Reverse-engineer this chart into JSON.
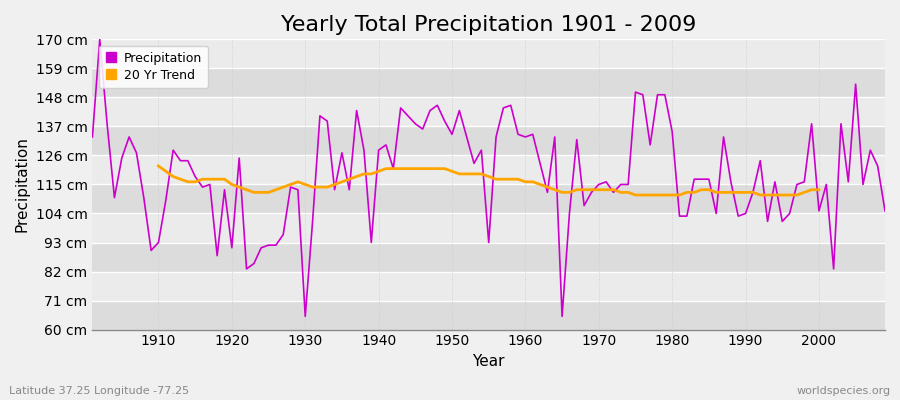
{
  "title": "Yearly Total Precipitation 1901 - 2009",
  "xlabel": "Year",
  "ylabel": "Precipitation",
  "lat_lon_label": "Latitude 37.25 Longitude -77.25",
  "source_label": "worldspecies.org",
  "years": [
    1901,
    1902,
    1903,
    1904,
    1905,
    1906,
    1907,
    1908,
    1909,
    1910,
    1911,
    1912,
    1913,
    1914,
    1915,
    1916,
    1917,
    1918,
    1919,
    1920,
    1921,
    1922,
    1923,
    1924,
    1925,
    1926,
    1927,
    1928,
    1929,
    1930,
    1931,
    1932,
    1933,
    1934,
    1935,
    1936,
    1937,
    1938,
    1939,
    1940,
    1941,
    1942,
    1943,
    1944,
    1945,
    1946,
    1947,
    1948,
    1949,
    1950,
    1951,
    1952,
    1953,
    1954,
    1955,
    1956,
    1957,
    1958,
    1959,
    1960,
    1961,
    1962,
    1963,
    1964,
    1965,
    1966,
    1967,
    1968,
    1969,
    1970,
    1971,
    1972,
    1973,
    1974,
    1975,
    1976,
    1977,
    1978,
    1979,
    1980,
    1981,
    1982,
    1983,
    1984,
    1985,
    1986,
    1987,
    1988,
    1989,
    1990,
    1991,
    1992,
    1993,
    1994,
    1995,
    1996,
    1997,
    1998,
    1999,
    2000,
    2001,
    2002,
    2003,
    2004,
    2005,
    2006,
    2007,
    2008,
    2009
  ],
  "precipitation": [
    133,
    170,
    138,
    110,
    125,
    133,
    127,
    110,
    90,
    93,
    109,
    128,
    124,
    124,
    118,
    114,
    115,
    88,
    113,
    91,
    125,
    83,
    85,
    91,
    92,
    92,
    96,
    114,
    113,
    65,
    101,
    141,
    139,
    113,
    127,
    113,
    143,
    128,
    93,
    128,
    130,
    121,
    144,
    141,
    138,
    136,
    143,
    145,
    139,
    134,
    143,
    133,
    123,
    128,
    93,
    133,
    144,
    145,
    134,
    133,
    134,
    123,
    112,
    133,
    65,
    104,
    132,
    107,
    112,
    115,
    116,
    112,
    115,
    115,
    150,
    149,
    130,
    149,
    149,
    135,
    103,
    103,
    117,
    117,
    117,
    104,
    133,
    116,
    103,
    104,
    112,
    124,
    101,
    116,
    101,
    104,
    115,
    116,
    138,
    105,
    115,
    83,
    138,
    116,
    153,
    115,
    128,
    122,
    105
  ],
  "trend_years": [
    1910,
    1911,
    1912,
    1913,
    1914,
    1915,
    1916,
    1917,
    1918,
    1919,
    1920,
    1921,
    1922,
    1923,
    1924,
    1925,
    1926,
    1927,
    1928,
    1929,
    1930,
    1931,
    1932,
    1933,
    1934,
    1935,
    1936,
    1937,
    1938,
    1939,
    1940,
    1941,
    1942,
    1943,
    1944,
    1945,
    1946,
    1947,
    1948,
    1949,
    1950,
    1951,
    1952,
    1953,
    1954,
    1955,
    1956,
    1957,
    1958,
    1959,
    1960,
    1961,
    1962,
    1963,
    1964,
    1965,
    1966,
    1967,
    1968,
    1969,
    1970,
    1971,
    1972,
    1973,
    1974,
    1975,
    1976,
    1977,
    1978,
    1979,
    1980,
    1981,
    1982,
    1983,
    1984,
    1985,
    1986,
    1987,
    1988,
    1989,
    1990,
    1991,
    1992,
    1993,
    1994,
    1995,
    1996,
    1997,
    1998,
    1999,
    2000
  ],
  "trend": [
    122,
    120,
    118,
    117,
    116,
    116,
    117,
    117,
    117,
    117,
    115,
    114,
    113,
    112,
    112,
    112,
    113,
    114,
    115,
    116,
    115,
    114,
    114,
    114,
    115,
    116,
    117,
    118,
    119,
    119,
    120,
    121,
    121,
    121,
    121,
    121,
    121,
    121,
    121,
    121,
    120,
    119,
    119,
    119,
    119,
    118,
    117,
    117,
    117,
    117,
    116,
    116,
    115,
    114,
    113,
    112,
    112,
    113,
    113,
    113,
    113,
    113,
    113,
    112,
    112,
    111,
    111,
    111,
    111,
    111,
    111,
    111,
    112,
    112,
    113,
    113,
    112,
    112,
    112,
    112,
    112,
    112,
    111,
    111,
    111,
    111,
    111,
    111,
    112,
    113,
    113
  ],
  "precip_color": "#CC00CC",
  "trend_color": "#FFA500",
  "bg_color": "#F0F0F0",
  "plot_bg_color_light": "#EBEBEB",
  "plot_bg_color_dark": "#DCDCDC",
  "grid_color_h": "#FFFFFF",
  "grid_color_v": "#CCCCCC",
  "ylim": [
    60,
    170
  ],
  "yticks": [
    60,
    71,
    82,
    93,
    104,
    115,
    126,
    137,
    148,
    159,
    170
  ],
  "ytick_labels": [
    "60 cm",
    "71 cm",
    "82 cm",
    "93 cm",
    "104 cm",
    "115 cm",
    "126 cm",
    "137 cm",
    "148 cm",
    "159 cm",
    "170 cm"
  ],
  "xlim": [
    1901,
    2009
  ],
  "xticks": [
    1910,
    1920,
    1930,
    1940,
    1950,
    1960,
    1970,
    1980,
    1990,
    2000
  ],
  "title_fontsize": 16,
  "axis_label_fontsize": 11,
  "tick_fontsize": 10,
  "legend_fontsize": 9
}
